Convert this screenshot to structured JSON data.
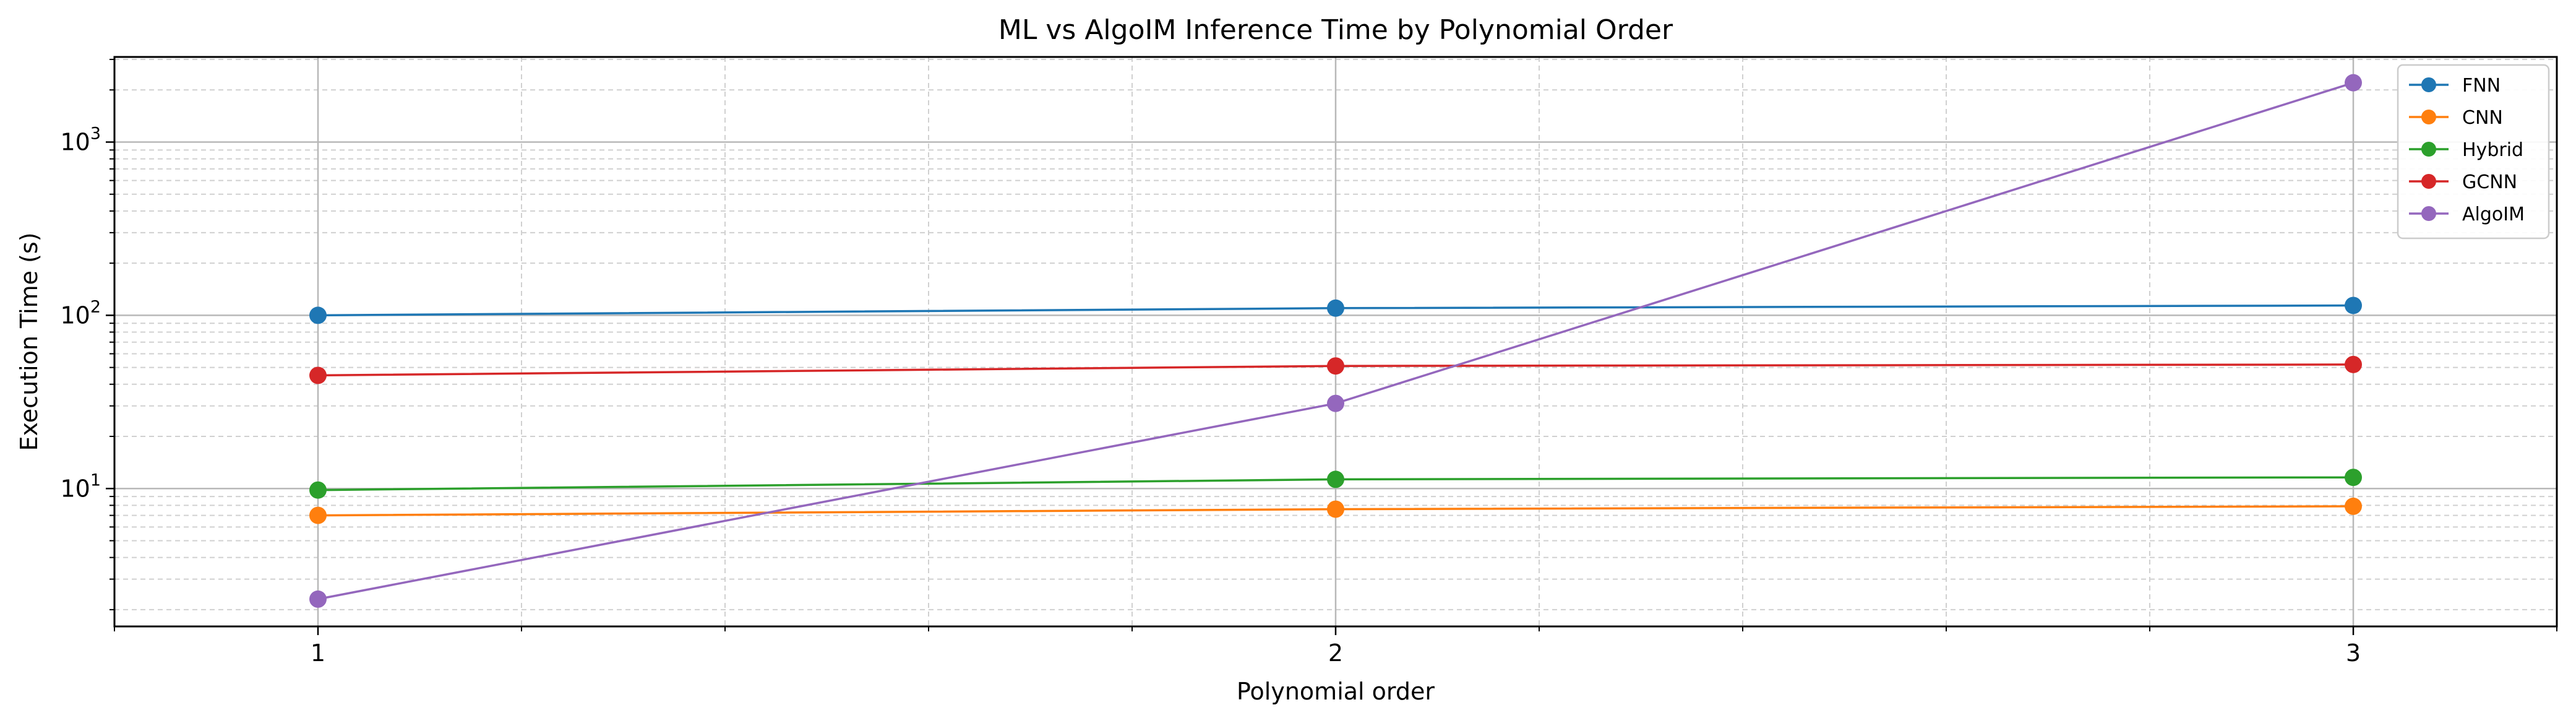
{
  "chart_data": {
    "type": "line",
    "title": "ML vs AlgoIM Inference Time by Polynomial Order",
    "xlabel": "Polynomial order",
    "ylabel": "Execution Time (s)",
    "x": [
      1,
      2,
      3
    ],
    "xlim": [
      0.8,
      3.2
    ],
    "ylim": [
      1.6,
      3100
    ],
    "yscale": "log",
    "grid": true,
    "legend_position": "top-right",
    "y_ticks": [
      {
        "value": 10,
        "base": "10",
        "exp": "1"
      },
      {
        "value": 100,
        "base": "10",
        "exp": "2"
      },
      {
        "value": 1000,
        "base": "10",
        "exp": "3"
      }
    ],
    "series": [
      {
        "name": "FNN",
        "color": "#1f77b4",
        "values": [
          100,
          110,
          114
        ]
      },
      {
        "name": "CNN",
        "color": "#ff7f0e",
        "values": [
          7.0,
          7.6,
          7.9
        ]
      },
      {
        "name": "Hybrid",
        "color": "#2ca02c",
        "values": [
          9.8,
          11.3,
          11.6
        ]
      },
      {
        "name": "GCNN",
        "color": "#d62728",
        "values": [
          45,
          51,
          52
        ]
      },
      {
        "name": "AlgoIM",
        "color": "#9467bd",
        "values": [
          2.3,
          31,
          2200
        ]
      }
    ]
  }
}
